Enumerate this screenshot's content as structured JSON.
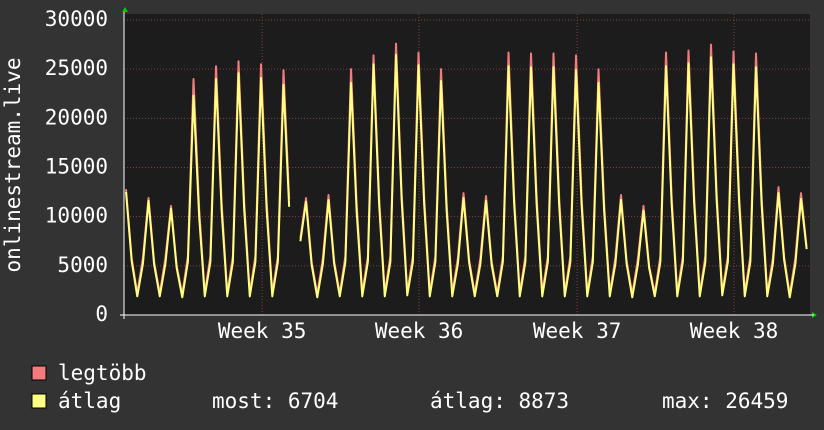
{
  "chart_data": {
    "type": "line",
    "y_label": "onlinestream.live",
    "ylim": [
      0,
      30000
    ],
    "yticks": [
      0,
      5000,
      10000,
      15000,
      20000,
      25000,
      30000
    ],
    "xlim": [
      -0.36,
      121.6
    ],
    "xticks": [
      {
        "value": 24.2,
        "label": "Week 35"
      },
      {
        "value": 52.1,
        "label": "Week 36"
      },
      {
        "value": 80.2,
        "label": "Week 37"
      },
      {
        "value": 108.1,
        "label": "Week 38"
      }
    ],
    "grid": true,
    "series": [
      {
        "name": "legtöbb",
        "color": "#f47b7b",
        "values": [
          12800,
          5800,
          2200,
          5800,
          11900,
          5400,
          2200,
          5800,
          11100,
          5000,
          2100,
          6000,
          24000,
          10800,
          2200,
          6000,
          25300,
          11400,
          2200,
          6000,
          25800,
          11600,
          2200,
          6000,
          25500,
          11500,
          2200,
          6000,
          24900,
          11800,
          null,
          7800,
          11900,
          5400,
          2100,
          5800,
          12200,
          5500,
          2200,
          6000,
          25000,
          11300,
          2200,
          6000,
          26400,
          11900,
          2200,
          6000,
          27600,
          12400,
          2300,
          6000,
          26700,
          12000,
          2200,
          6000,
          25000,
          11300,
          2200,
          5800,
          12400,
          5600,
          2200,
          5800,
          12100,
          5400,
          2200,
          6000,
          26700,
          12000,
          2200,
          6000,
          26600,
          12000,
          2200,
          6000,
          26600,
          12000,
          2200,
          6000,
          26400,
          11900,
          2200,
          6000,
          25000,
          11300,
          2200,
          5800,
          12200,
          5500,
          2100,
          5700,
          11100,
          5000,
          2200,
          6000,
          26700,
          12000,
          2200,
          6000,
          26900,
          12100,
          2200,
          6000,
          27500,
          12400,
          2300,
          6000,
          26800,
          12100,
          2200,
          6000,
          26600,
          12000,
          2200,
          5800,
          13000,
          5900,
          2100,
          5800,
          12400,
          6900
        ]
      },
      {
        "name": "átlag",
        "color": "#ffff80",
        "values": [
          12500,
          5500,
          1900,
          5200,
          11600,
          5100,
          1900,
          5200,
          10800,
          4800,
          1800,
          5400,
          22300,
          10000,
          1900,
          5400,
          24000,
          10600,
          1900,
          5400,
          24600,
          10800,
          1900,
          5400,
          24100,
          10700,
          1900,
          5400,
          23400,
          11000,
          null,
          7500,
          11500,
          5100,
          1800,
          5200,
          11700,
          5200,
          1900,
          5400,
          23600,
          10500,
          1900,
          5400,
          25500,
          11200,
          1900,
          5400,
          26459,
          11700,
          2000,
          5400,
          25400,
          11300,
          1900,
          5400,
          23800,
          10600,
          1900,
          5200,
          11900,
          5300,
          1900,
          5200,
          11600,
          5100,
          1900,
          5400,
          25300,
          11300,
          1900,
          5400,
          25200,
          11200,
          1900,
          5400,
          25200,
          11200,
          1900,
          5400,
          24900,
          11100,
          1900,
          5400,
          23600,
          10600,
          1900,
          5200,
          11700,
          5200,
          1800,
          5100,
          10600,
          4800,
          1900,
          5400,
          25300,
          11300,
          1900,
          5400,
          25600,
          11400,
          1900,
          5400,
          26200,
          11700,
          2000,
          5400,
          25500,
          11400,
          1900,
          5400,
          25200,
          11200,
          1900,
          5200,
          12400,
          5600,
          1800,
          5200,
          11800,
          6704
        ]
      }
    ],
    "stats": [
      {
        "label": "most:",
        "value": 6704
      },
      {
        "label": "átlag:",
        "value": 8873
      },
      {
        "label": "max:",
        "value": 26459
      }
    ]
  }
}
